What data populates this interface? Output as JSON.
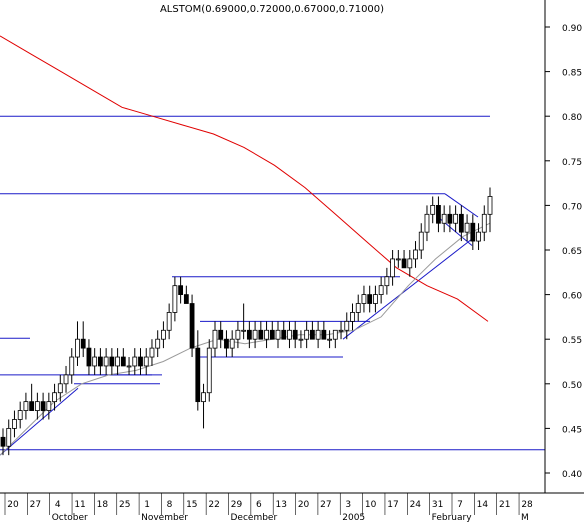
{
  "chart_data": {
    "type": "candlestick",
    "title": "ALSTOM(0.69000,0.72000,0.67000,0.71000)",
    "xlabel": "",
    "ylabel": "",
    "ylim": [
      0.385,
      0.96
    ],
    "y_ticks": [
      "0.90",
      "0.85",
      "0.80",
      "0.75",
      "0.70",
      "0.65",
      "0.60",
      "0.55",
      "0.50",
      "0.45",
      "0.40"
    ],
    "y_tick_values": [
      0.9,
      0.85,
      0.8,
      0.75,
      0.7,
      0.65,
      0.6,
      0.55,
      0.5,
      0.45,
      0.4
    ],
    "x_day_labels": [
      "20",
      "27",
      "4",
      "11",
      "18",
      "25",
      "1",
      "8",
      "15",
      "22",
      "29",
      "6",
      "13",
      "20",
      "27",
      "3",
      "10",
      "17",
      "24",
      "31",
      "7",
      "14",
      "21",
      "28"
    ],
    "month_labels": [
      "October",
      "November",
      "December",
      "2005",
      "February",
      "M"
    ],
    "month_label_week_index": [
      2,
      6,
      10,
      15,
      19,
      23
    ],
    "grid": false,
    "colors": {
      "candle": "#000000",
      "up_body": "#ffffff",
      "down_body": "#000000",
      "moving_average_red": "#e00000",
      "moving_average_grey": "#9a9a9a",
      "trendline": "#1a1ac8",
      "axis": "#000000"
    },
    "ohlc": [
      [
        0.44,
        0.45,
        0.42,
        0.43
      ],
      [
        0.43,
        0.46,
        0.42,
        0.45
      ],
      [
        0.45,
        0.47,
        0.44,
        0.46
      ],
      [
        0.46,
        0.48,
        0.45,
        0.47
      ],
      [
        0.47,
        0.49,
        0.46,
        0.48
      ],
      [
        0.48,
        0.5,
        0.47,
        0.47
      ],
      [
        0.47,
        0.49,
        0.46,
        0.48
      ],
      [
        0.48,
        0.49,
        0.46,
        0.47
      ],
      [
        0.47,
        0.49,
        0.46,
        0.48
      ],
      [
        0.48,
        0.5,
        0.47,
        0.49
      ],
      [
        0.49,
        0.51,
        0.48,
        0.5
      ],
      [
        0.5,
        0.52,
        0.49,
        0.51
      ],
      [
        0.51,
        0.54,
        0.5,
        0.53
      ],
      [
        0.53,
        0.57,
        0.52,
        0.55
      ],
      [
        0.55,
        0.57,
        0.53,
        0.54
      ],
      [
        0.54,
        0.55,
        0.51,
        0.52
      ],
      [
        0.52,
        0.54,
        0.51,
        0.53
      ],
      [
        0.53,
        0.54,
        0.51,
        0.52
      ],
      [
        0.52,
        0.54,
        0.51,
        0.53
      ],
      [
        0.53,
        0.54,
        0.51,
        0.52
      ],
      [
        0.52,
        0.54,
        0.51,
        0.53
      ],
      [
        0.53,
        0.54,
        0.52,
        0.52
      ],
      [
        0.52,
        0.53,
        0.51,
        0.52
      ],
      [
        0.52,
        0.54,
        0.51,
        0.53
      ],
      [
        0.53,
        0.54,
        0.51,
        0.52
      ],
      [
        0.52,
        0.54,
        0.51,
        0.53
      ],
      [
        0.53,
        0.55,
        0.52,
        0.54
      ],
      [
        0.54,
        0.56,
        0.53,
        0.55
      ],
      [
        0.55,
        0.57,
        0.54,
        0.56
      ],
      [
        0.56,
        0.59,
        0.55,
        0.58
      ],
      [
        0.58,
        0.62,
        0.57,
        0.61
      ],
      [
        0.61,
        0.62,
        0.59,
        0.6
      ],
      [
        0.6,
        0.61,
        0.59,
        0.59
      ],
      [
        0.59,
        0.6,
        0.53,
        0.54
      ],
      [
        0.54,
        0.56,
        0.47,
        0.48
      ],
      [
        0.48,
        0.5,
        0.45,
        0.49
      ],
      [
        0.49,
        0.55,
        0.48,
        0.54
      ],
      [
        0.54,
        0.57,
        0.53,
        0.56
      ],
      [
        0.56,
        0.57,
        0.54,
        0.55
      ],
      [
        0.55,
        0.56,
        0.53,
        0.54
      ],
      [
        0.54,
        0.56,
        0.53,
        0.55
      ],
      [
        0.55,
        0.57,
        0.54,
        0.56
      ],
      [
        0.56,
        0.59,
        0.55,
        0.56
      ],
      [
        0.56,
        0.57,
        0.54,
        0.55
      ],
      [
        0.55,
        0.57,
        0.54,
        0.56
      ],
      [
        0.56,
        0.57,
        0.55,
        0.55
      ],
      [
        0.55,
        0.57,
        0.54,
        0.56
      ],
      [
        0.56,
        0.57,
        0.55,
        0.55
      ],
      [
        0.55,
        0.57,
        0.54,
        0.56
      ],
      [
        0.56,
        0.57,
        0.55,
        0.55
      ],
      [
        0.55,
        0.57,
        0.54,
        0.56
      ],
      [
        0.56,
        0.57,
        0.54,
        0.55
      ],
      [
        0.55,
        0.56,
        0.54,
        0.55
      ],
      [
        0.55,
        0.57,
        0.54,
        0.56
      ],
      [
        0.56,
        0.57,
        0.55,
        0.55
      ],
      [
        0.55,
        0.57,
        0.54,
        0.56
      ],
      [
        0.56,
        0.57,
        0.55,
        0.55
      ],
      [
        0.55,
        0.56,
        0.54,
        0.55
      ],
      [
        0.55,
        0.56,
        0.54,
        0.56
      ],
      [
        0.56,
        0.57,
        0.55,
        0.56
      ],
      [
        0.56,
        0.58,
        0.55,
        0.57
      ],
      [
        0.57,
        0.59,
        0.56,
        0.58
      ],
      [
        0.58,
        0.6,
        0.57,
        0.59
      ],
      [
        0.59,
        0.61,
        0.58,
        0.6
      ],
      [
        0.6,
        0.61,
        0.58,
        0.59
      ],
      [
        0.59,
        0.61,
        0.58,
        0.6
      ],
      [
        0.6,
        0.62,
        0.59,
        0.61
      ],
      [
        0.61,
        0.63,
        0.6,
        0.62
      ],
      [
        0.62,
        0.65,
        0.61,
        0.64
      ],
      [
        0.64,
        0.65,
        0.63,
        0.64
      ],
      [
        0.64,
        0.65,
        0.63,
        0.63
      ],
      [
        0.63,
        0.65,
        0.62,
        0.64
      ],
      [
        0.64,
        0.66,
        0.63,
        0.65
      ],
      [
        0.65,
        0.68,
        0.64,
        0.67
      ],
      [
        0.67,
        0.7,
        0.66,
        0.69
      ],
      [
        0.69,
        0.71,
        0.68,
        0.7
      ],
      [
        0.7,
        0.71,
        0.67,
        0.68
      ],
      [
        0.68,
        0.7,
        0.67,
        0.69
      ],
      [
        0.69,
        0.7,
        0.67,
        0.68
      ],
      [
        0.68,
        0.7,
        0.67,
        0.69
      ],
      [
        0.69,
        0.7,
        0.66,
        0.67
      ],
      [
        0.67,
        0.69,
        0.66,
        0.68
      ],
      [
        0.68,
        0.69,
        0.65,
        0.66
      ],
      [
        0.66,
        0.68,
        0.65,
        0.67
      ],
      [
        0.67,
        0.7,
        0.66,
        0.69
      ],
      [
        0.69,
        0.72,
        0.67,
        0.71
      ]
    ],
    "moving_average_red": [
      0.89,
      0.87,
      0.85,
      0.83,
      0.81,
      0.8,
      0.79,
      0.78,
      0.765,
      0.745,
      0.72,
      0.69,
      0.66,
      0.63,
      0.61,
      0.595,
      0.57
    ],
    "moving_average_grey": [
      0.42,
      0.45,
      0.48,
      0.5,
      0.51,
      0.515,
      0.525,
      0.54,
      0.55,
      0.545,
      0.55,
      0.555,
      0.555,
      0.56,
      0.575,
      0.61,
      0.64,
      0.665,
      0.68
    ],
    "horizontal_levels": [
      0.8,
      0.713,
      0.62,
      0.57,
      0.551,
      0.53,
      0.51,
      0.5,
      0.426
    ],
    "trendlines": "support lines connecting rising lows"
  }
}
